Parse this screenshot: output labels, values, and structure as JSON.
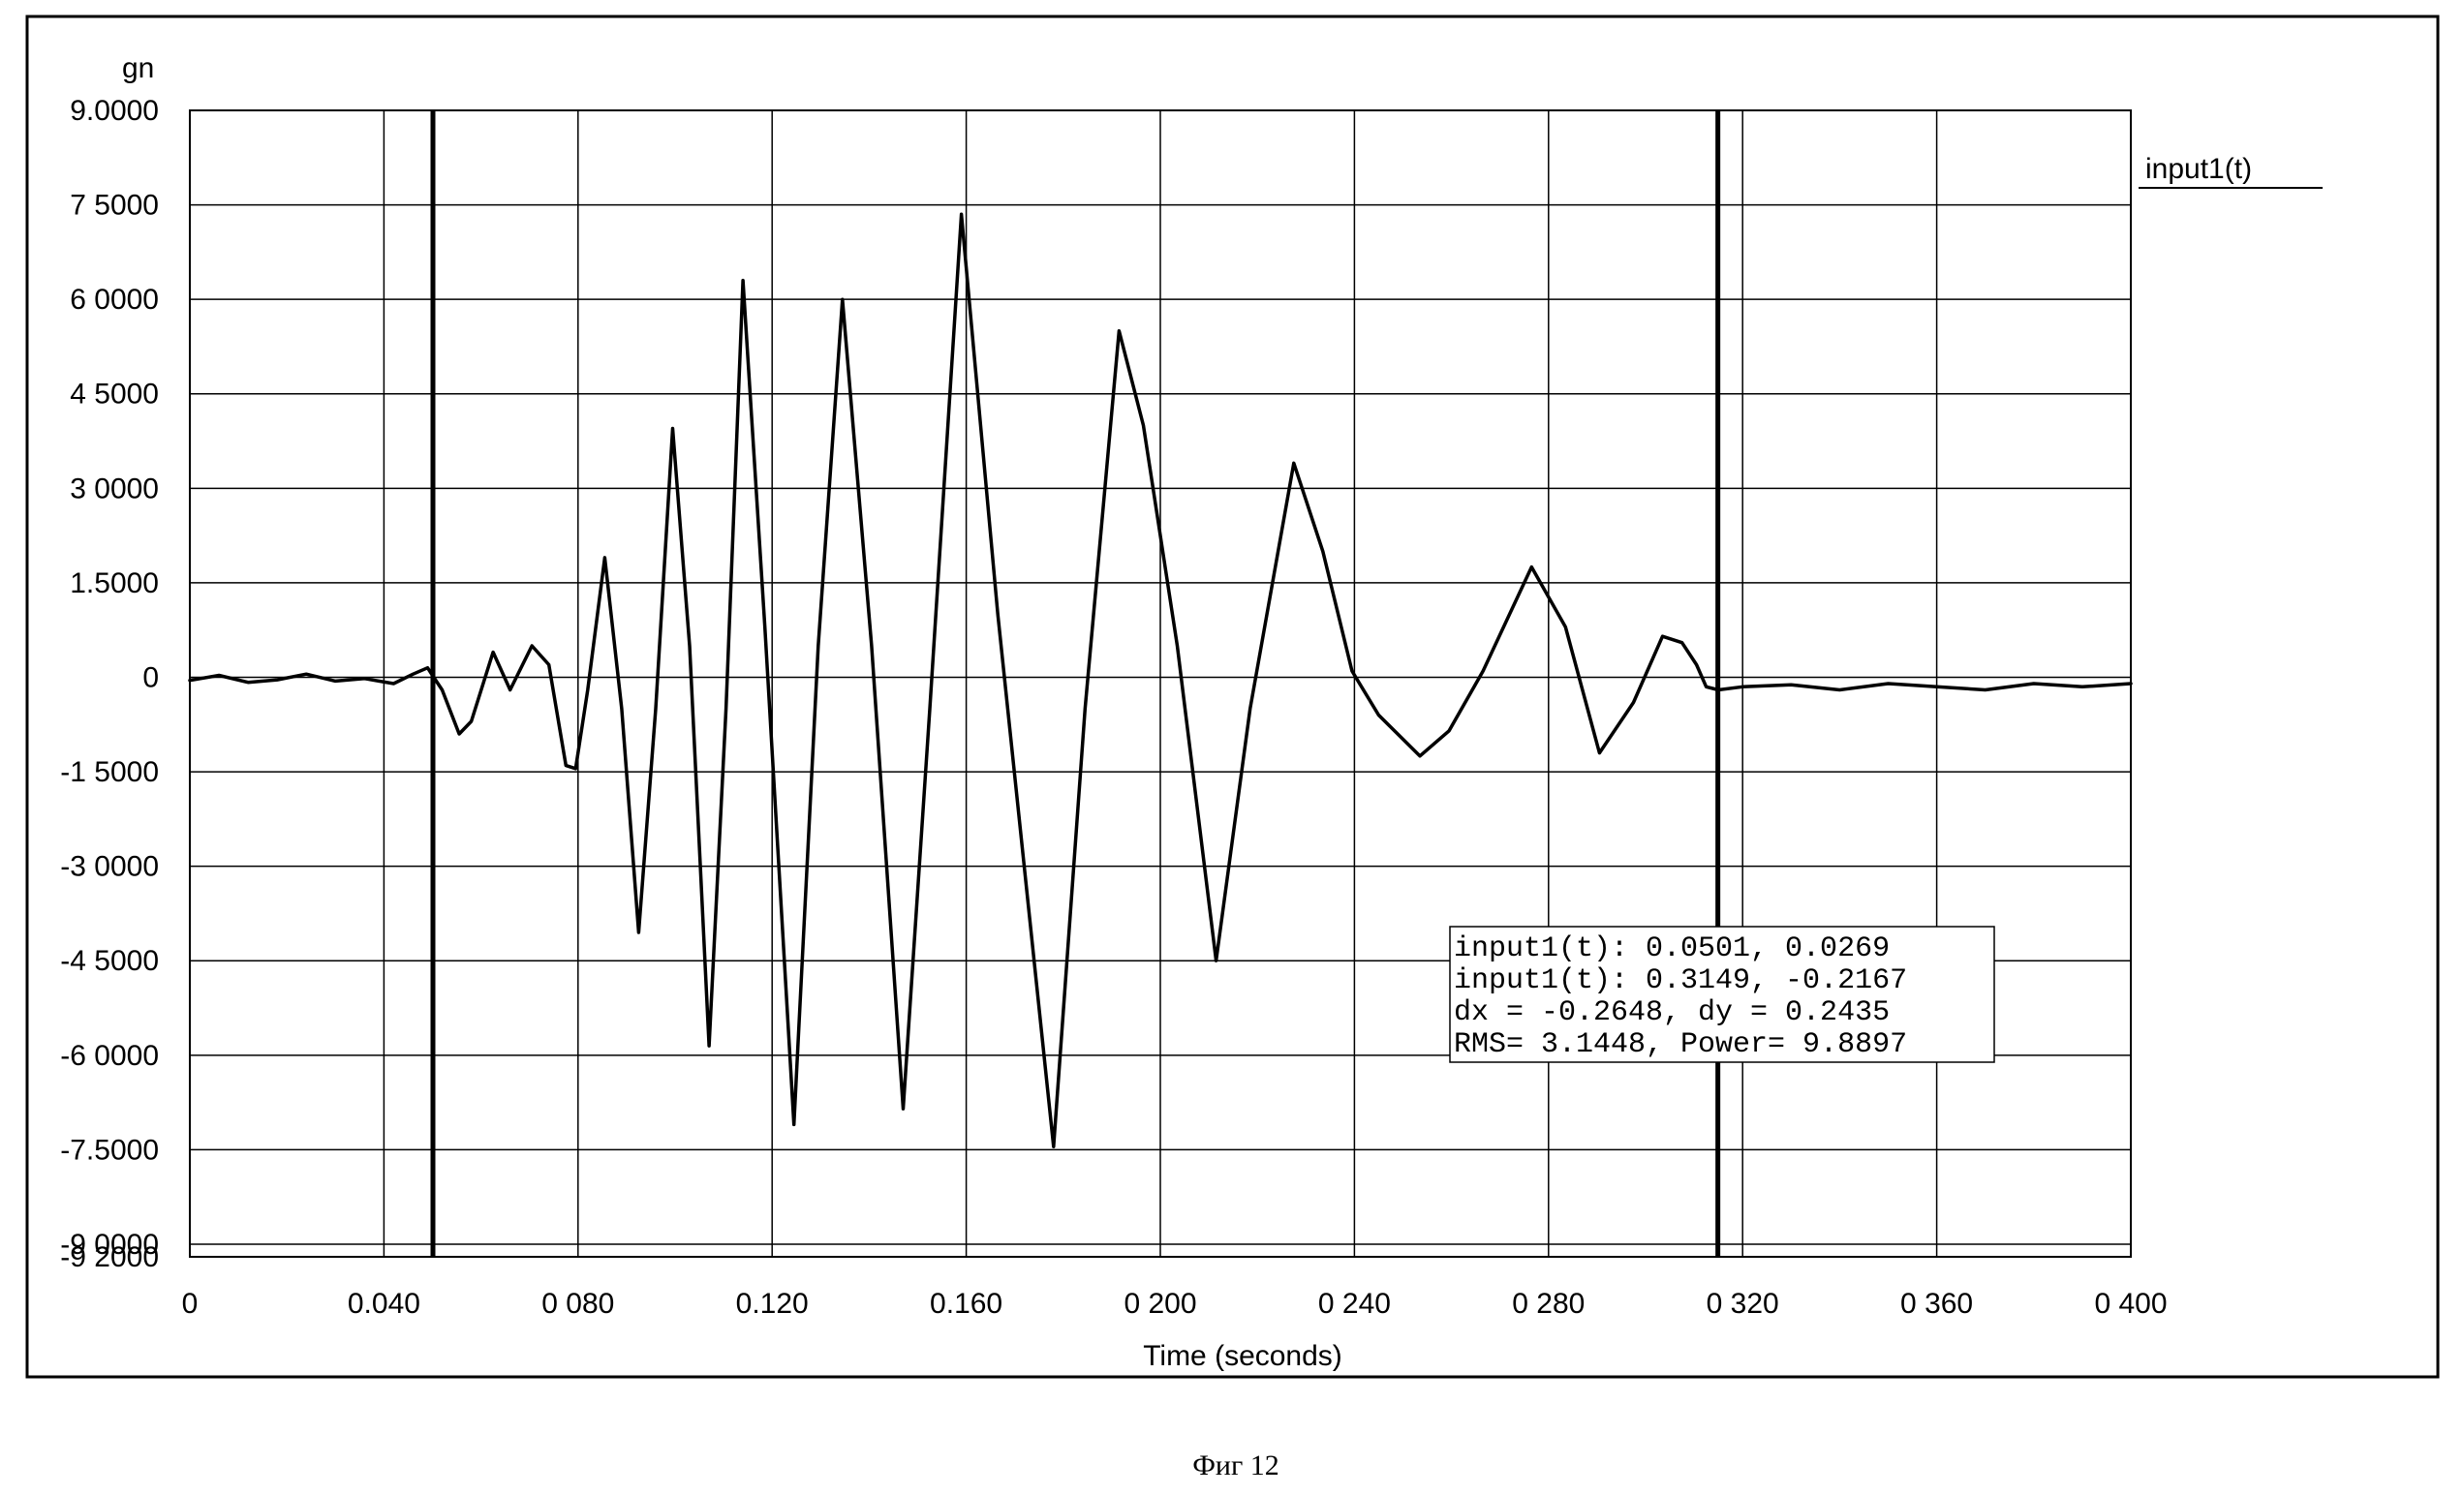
{
  "chart_data": {
    "type": "line",
    "title": "",
    "xlabel": "Time (seconds)",
    "ylabel": "gn",
    "xlim": [
      0,
      0.4
    ],
    "ylim": [
      -9.2,
      9.0
    ],
    "grid": true,
    "legend_position": "top-right",
    "x_ticks": [
      "0",
      "0.040",
      "0 080",
      "0.120",
      "0.160",
      "0 200",
      "0 240",
      "0 280",
      "0 320",
      "0 360",
      "0 400"
    ],
    "x_tick_values": [
      0,
      0.04,
      0.08,
      0.12,
      0.16,
      0.2,
      0.24,
      0.28,
      0.32,
      0.36,
      0.4
    ],
    "y_ticks": [
      "9.0000",
      "7 5000",
      "6 0000",
      "4 5000",
      "3 0000",
      "1.5000",
      "0",
      "-1 5000",
      "-3 0000",
      "-4 5000",
      "-6 0000",
      "-7.5000",
      "-9 0000",
      "-9 2000"
    ],
    "y_tick_values": [
      9,
      7.5,
      6,
      4.5,
      3,
      1.5,
      0,
      -1.5,
      -3,
      -4.5,
      -6,
      -7.5,
      -9,
      -9.2
    ],
    "series": [
      {
        "name": "input1(t)",
        "color": "#000000",
        "x": [
          0,
          0.006,
          0.012,
          0.018,
          0.024,
          0.03,
          0.036,
          0.042,
          0.046,
          0.049,
          0.05,
          0.052,
          0.0555,
          0.058,
          0.0625,
          0.066,
          0.0705,
          0.074,
          0.0775,
          0.0795,
          0.082,
          0.0855,
          0.089,
          0.0925,
          0.096,
          0.0995,
          0.103,
          0.107,
          0.1105,
          0.114,
          0.1185,
          0.1245,
          0.1295,
          0.1345,
          0.1405,
          0.147,
          0.1525,
          0.159,
          0.1665,
          0.178,
          0.1845,
          0.1915,
          0.1965,
          0.2035,
          0.2115,
          0.2185,
          0.2275,
          0.2335,
          0.2395,
          0.245,
          0.2535,
          0.2595,
          0.2665,
          0.2765,
          0.2835,
          0.2905,
          0.2975,
          0.3035,
          0.3075,
          0.3105,
          0.3125,
          0.315,
          0.32,
          0.33,
          0.34,
          0.35,
          0.36,
          0.37,
          0.38,
          0.39,
          0.4
        ],
        "values": [
          -0.05,
          0.03,
          -0.08,
          -0.04,
          0.05,
          -0.06,
          -0.02,
          -0.1,
          0.05,
          0.15,
          0.03,
          -0.2,
          -0.9,
          -0.7,
          0.4,
          -0.2,
          0.5,
          0.2,
          -1.4,
          -1.45,
          -0.2,
          1.9,
          -0.5,
          -4.05,
          -0.5,
          3.95,
          0.5,
          -5.85,
          -0.5,
          6.3,
          0.8,
          -7.1,
          0.5,
          6.0,
          0.5,
          -6.85,
          -0.5,
          7.35,
          1.0,
          -7.45,
          -0.5,
          5.5,
          4.0,
          0.5,
          -4.5,
          -0.5,
          3.4,
          2.0,
          0.1,
          -0.6,
          -1.25,
          -0.85,
          0.1,
          1.75,
          0.8,
          -1.2,
          -0.4,
          0.65,
          0.55,
          0.2,
          -0.15,
          -0.2,
          -0.15,
          -0.12,
          -0.2,
          -0.1,
          -0.15,
          -0.2,
          -0.1,
          -0.15,
          -0.1
        ]
      }
    ],
    "cursors": [
      0.0501,
      0.3149
    ]
  },
  "readout": {
    "line1": "input1(t): 0.0501, 0.0269",
    "line2": "input1(t): 0.3149, -0.2167",
    "line3": "dx = -0.2648, dy = 0.2435",
    "line4": "RMS= 3.1448, Power= 9.8897"
  },
  "caption": "Фиг 12"
}
